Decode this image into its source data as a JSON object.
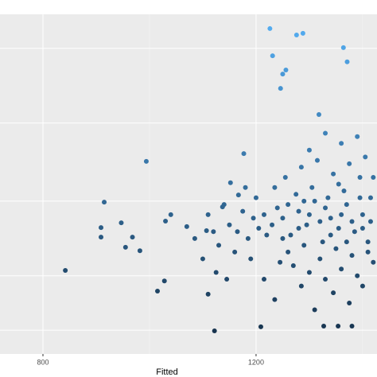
{
  "chart_data": {
    "type": "scatter",
    "x_label": "Fitted",
    "x": [
      1226,
      1276,
      1288,
      1364,
      1231,
      1371,
      1256,
      1250,
      1246,
      1318,
      1177,
      994,
      915,
      947,
      909,
      909,
      968,
      955,
      982,
      842,
      1028,
      1015,
      1110,
      1122,
      1209,
      1327,
      1354,
      1380,
      1030,
      1040,
      1070,
      1085,
      1107,
      1137,
      1152,
      1167,
      1250,
      1265,
      1280,
      1295,
      1310,
      1325,
      1340,
      1355,
      1370,
      1385,
      1400,
      1415,
      1260,
      1275,
      1290,
      1305,
      1320,
      1335,
      1350,
      1365,
      1380,
      1395,
      1410,
      1425,
      1230,
      1240,
      1220,
      1215,
      1205,
      1195,
      1185,
      1175,
      1165,
      1255,
      1285,
      1315,
      1345,
      1375,
      1405,
      1300,
      1360,
      1390,
      1330,
      1420,
      1270,
      1300,
      1330,
      1360,
      1390,
      1420,
      1245,
      1285,
      1345,
      1375,
      1310,
      1235,
      1400,
      1190,
      1200,
      1180,
      1160,
      1150,
      1140,
      1130,
      1120,
      1110,
      1100,
      1125,
      1145,
      1215,
      1260,
      1280,
      1300,
      1320,
      1340,
      1360,
      1380,
      1400,
      1415,
      1235,
      1250,
      1290,
      1330,
      1370,
      1410,
      1355,
      1395,
      1425
    ],
    "values": [
      95.8,
      93.9,
      94.4,
      90.2,
      87.8,
      86,
      83.6,
      82.4,
      78.2,
      70.5,
      59,
      56.7,
      44.7,
      38.6,
      37.2,
      34.4,
      34.4,
      31.4,
      30.4,
      24.6,
      21.5,
      18.5,
      17.6,
      6.8,
      8,
      8.2,
      8.2,
      8.2,
      39.1,
      41,
      37.5,
      34,
      36.3,
      43.3,
      50.4,
      46.8,
      40,
      35,
      42,
      38,
      45,
      33,
      40,
      37,
      44,
      36,
      41,
      39,
      30,
      47,
      32,
      49,
      28,
      46,
      31,
      48,
      29,
      46,
      33,
      43,
      38,
      43,
      35,
      41,
      37,
      40,
      34,
      42,
      36,
      52,
      55,
      57,
      53,
      56,
      58,
      60,
      62,
      64,
      65,
      52,
      26,
      24,
      22,
      25,
      23,
      27,
      27,
      20,
      18,
      15,
      13,
      16,
      20,
      28,
      46,
      49,
      30,
      38,
      44,
      32,
      36,
      41,
      28,
      24,
      22,
      22,
      44,
      37,
      41,
      39,
      35,
      41,
      39,
      37,
      46,
      49,
      34,
      45,
      43,
      33,
      30,
      50,
      52,
      35
    ],
    "xlim": [
      719.4,
      1427
    ],
    "ylim": [
      0,
      100
    ],
    "xticks": [
      800,
      1200
    ],
    "minor_xticks": [
      1000,
      1400
    ],
    "yticks": [
      7,
      23,
      45,
      68,
      90
    ],
    "color_scale": {
      "low": "#132b43",
      "high": "#56b1f7"
    },
    "grid": true
  }
}
